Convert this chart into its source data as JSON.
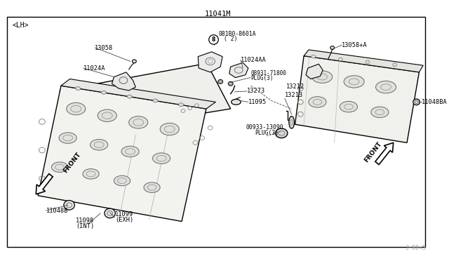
{
  "bg_color": "#ffffff",
  "border_color": "#000000",
  "line_color": "#000000",
  "part_line_color": "#444444",
  "title_top": "11041M",
  "label_lh": "<LH>",
  "watermark": "J·00<5",
  "fg_color": "#111111"
}
